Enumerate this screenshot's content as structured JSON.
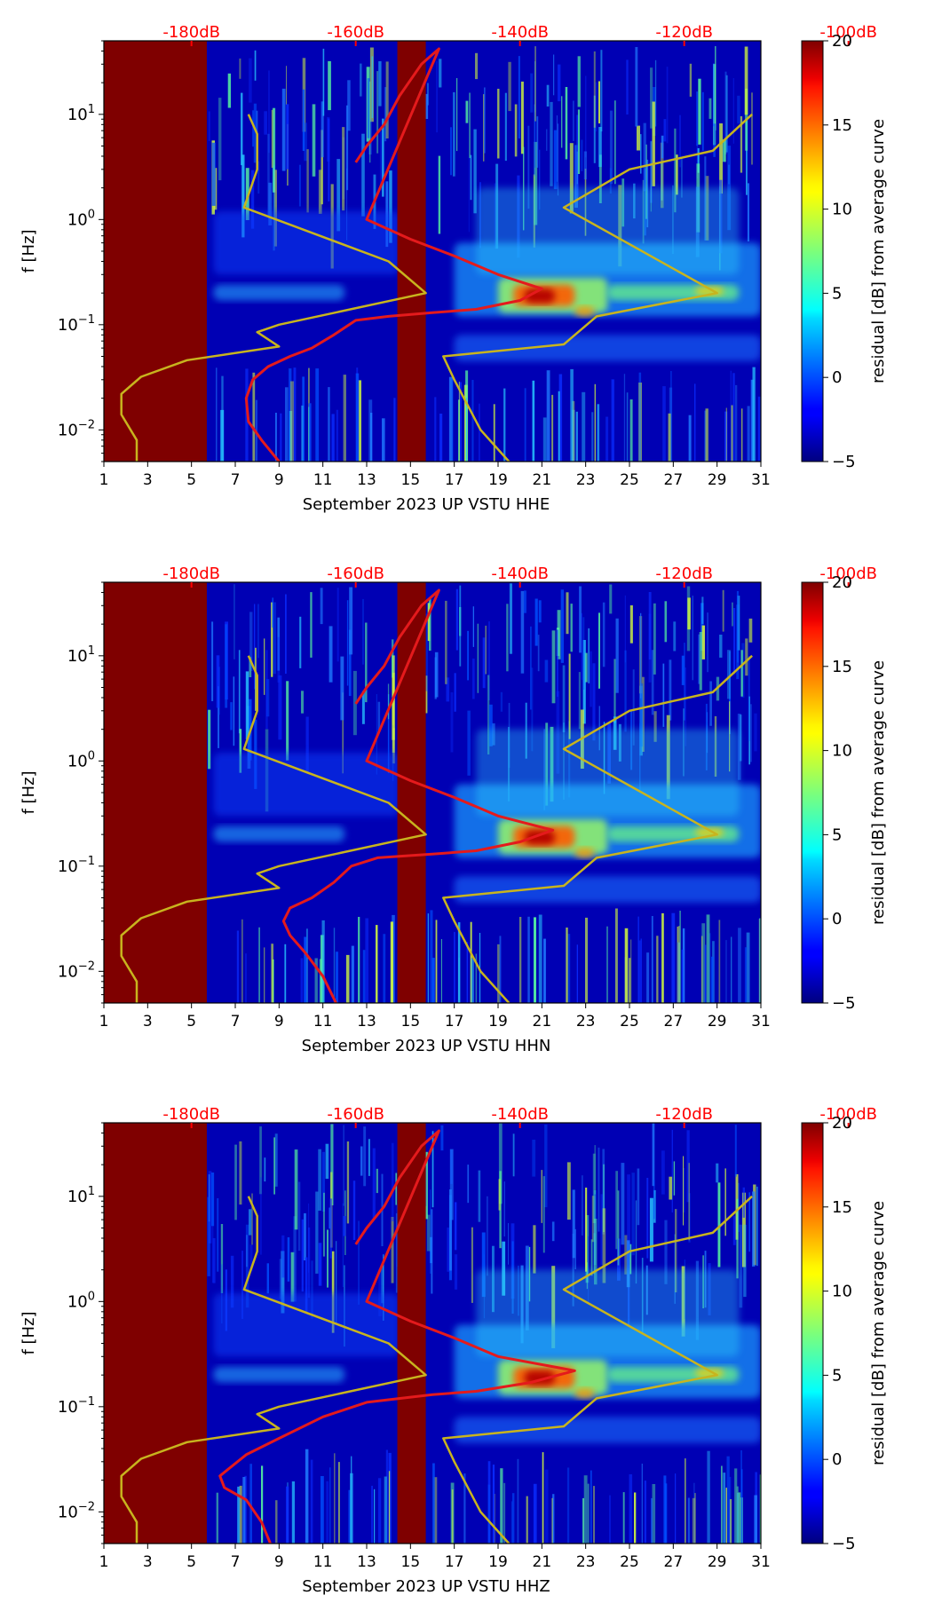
{
  "chart_data": [
    {
      "type": "heatmap",
      "title": "",
      "xlabel": "September 2023 UP VSTU  HHE",
      "ylabel": "f [Hz]",
      "x_ticks": [
        1,
        3,
        5,
        7,
        9,
        11,
        13,
        15,
        17,
        19,
        21,
        23,
        25,
        27,
        29,
        31
      ],
      "xlim": [
        1,
        31
      ],
      "y_scale": "log",
      "ylim": [
        0.005,
        50
      ],
      "y_ticks": [
        {
          "value": 0.01,
          "base": "10",
          "exp": "−2"
        },
        {
          "value": 0.1,
          "base": "10",
          "exp": "−1"
        },
        {
          "value": 1,
          "base": "10",
          "exp": "0"
        },
        {
          "value": 10,
          "base": "10",
          "exp": "1"
        }
      ],
      "top_axis_ticks": [
        "-180dB",
        "-160dB",
        "-140dB",
        "-120dB",
        "-100dB"
      ],
      "top_axis_color": "#ff0000",
      "colorbar": {
        "label": "residual [dB] from average curve",
        "ticks": [
          20,
          15,
          10,
          5,
          0,
          -5
        ],
        "range": [
          -5,
          20
        ],
        "colormap": "jet"
      },
      "no_data_days": [
        [
          1,
          5.7
        ],
        [
          14.4,
          15.7
        ]
      ],
      "series": [
        {
          "color": "#e41a1c",
          "values": [
            [
              12.5,
              3.5
            ],
            [
              13.0,
              5.0
            ],
            [
              13.8,
              8.0
            ],
            [
              14.5,
              15.0
            ],
            [
              15.5,
              30.0
            ],
            [
              16.3,
              42.0
            ],
            [
              13.0,
              1.0
            ],
            [
              15.0,
              0.65
            ],
            [
              17.0,
              0.45
            ],
            [
              19.0,
              0.3
            ],
            [
              21.0,
              0.22
            ],
            [
              20.0,
              0.17
            ],
            [
              18.0,
              0.14
            ],
            [
              16.0,
              0.13
            ],
            [
              14.0,
              0.12
            ],
            [
              12.5,
              0.11
            ],
            [
              11.5,
              0.08
            ],
            [
              10.5,
              0.06
            ],
            [
              9.5,
              0.05
            ],
            [
              8.5,
              0.04
            ],
            [
              7.8,
              0.03
            ],
            [
              7.5,
              0.02
            ],
            [
              7.6,
              0.012
            ],
            [
              8.2,
              0.008
            ],
            [
              9.0,
              0.005
            ]
          ]
        },
        {
          "color": "#c8b41e",
          "values": [
            [
              2.5,
              0.005
            ],
            [
              2.5,
              0.008
            ],
            [
              1.8,
              0.014
            ],
            [
              1.8,
              0.022
            ],
            [
              2.7,
              0.032
            ],
            [
              4.8,
              0.046
            ],
            [
              9.0,
              0.062
            ],
            [
              8.0,
              0.085
            ],
            [
              9.0,
              0.1
            ],
            [
              15.7,
              0.2
            ],
            [
              14.0,
              0.4
            ],
            [
              7.4,
              1.3
            ],
            [
              8.0,
              3.0
            ],
            [
              8.0,
              6.5
            ],
            [
              7.6,
              10.0
            ]
          ]
        },
        {
          "color": "#c8b41e",
          "values": [
            [
              19.5,
              0.005
            ],
            [
              18.2,
              0.01
            ],
            [
              17.0,
              0.03
            ],
            [
              16.5,
              0.05
            ],
            [
              22.0,
              0.065
            ],
            [
              23.5,
              0.12
            ],
            [
              29.0,
              0.2
            ],
            [
              22.0,
              1.3
            ],
            [
              25.0,
              3.0
            ],
            [
              28.8,
              4.5
            ],
            [
              30.6,
              10.0
            ]
          ]
        }
      ]
    },
    {
      "type": "heatmap",
      "title": "",
      "xlabel": "September 2023 UP VSTU  HHN",
      "ylabel": "f [Hz]",
      "x_ticks": [
        1,
        3,
        5,
        7,
        9,
        11,
        13,
        15,
        17,
        19,
        21,
        23,
        25,
        27,
        29,
        31
      ],
      "xlim": [
        1,
        31
      ],
      "y_scale": "log",
      "ylim": [
        0.005,
        50
      ],
      "y_ticks": [
        {
          "value": 0.01,
          "base": "10",
          "exp": "−2"
        },
        {
          "value": 0.1,
          "base": "10",
          "exp": "−1"
        },
        {
          "value": 1,
          "base": "10",
          "exp": "0"
        },
        {
          "value": 10,
          "base": "10",
          "exp": "1"
        }
      ],
      "top_axis_ticks": [
        "-180dB",
        "-160dB",
        "-140dB",
        "-120dB",
        "-100dB"
      ],
      "top_axis_color": "#ff0000",
      "colorbar": {
        "label": "residual [dB] from average curve",
        "ticks": [
          20,
          15,
          10,
          5,
          0,
          -5
        ],
        "range": [
          -5,
          20
        ],
        "colormap": "jet"
      },
      "no_data_days": [
        [
          1,
          5.7
        ],
        [
          14.4,
          15.7
        ]
      ],
      "series": [
        {
          "color": "#e41a1c",
          "values": [
            [
              12.5,
              3.5
            ],
            [
              13.0,
              5.0
            ],
            [
              13.8,
              8.0
            ],
            [
              14.5,
              15.0
            ],
            [
              15.5,
              30.0
            ],
            [
              16.3,
              42.0
            ],
            [
              13.0,
              1.0
            ],
            [
              15.0,
              0.65
            ],
            [
              17.0,
              0.45
            ],
            [
              19.0,
              0.3
            ],
            [
              21.5,
              0.22
            ],
            [
              20.0,
              0.17
            ],
            [
              18.0,
              0.14
            ],
            [
              16.0,
              0.13
            ],
            [
              13.5,
              0.12
            ],
            [
              12.3,
              0.1
            ],
            [
              11.5,
              0.07
            ],
            [
              10.5,
              0.05
            ],
            [
              9.5,
              0.04
            ],
            [
              9.2,
              0.03
            ],
            [
              9.5,
              0.022
            ],
            [
              10.2,
              0.015
            ],
            [
              11.0,
              0.009
            ],
            [
              11.6,
              0.005
            ]
          ]
        },
        {
          "color": "#c8b41e",
          "values": [
            [
              2.5,
              0.005
            ],
            [
              2.5,
              0.008
            ],
            [
              1.8,
              0.014
            ],
            [
              1.8,
              0.022
            ],
            [
              2.7,
              0.032
            ],
            [
              4.8,
              0.046
            ],
            [
              9.0,
              0.062
            ],
            [
              8.0,
              0.085
            ],
            [
              9.0,
              0.1
            ],
            [
              15.7,
              0.2
            ],
            [
              14.0,
              0.4
            ],
            [
              7.4,
              1.3
            ],
            [
              8.0,
              3.0
            ],
            [
              8.0,
              6.5
            ],
            [
              7.6,
              10.0
            ]
          ]
        },
        {
          "color": "#c8b41e",
          "values": [
            [
              19.5,
              0.005
            ],
            [
              18.2,
              0.01
            ],
            [
              17.0,
              0.03
            ],
            [
              16.5,
              0.05
            ],
            [
              22.0,
              0.065
            ],
            [
              23.5,
              0.12
            ],
            [
              29.0,
              0.2
            ],
            [
              22.0,
              1.3
            ],
            [
              25.0,
              3.0
            ],
            [
              28.8,
              4.5
            ],
            [
              30.6,
              10.0
            ]
          ]
        }
      ]
    },
    {
      "type": "heatmap",
      "title": "",
      "xlabel": "September 2023 UP VSTU  HHZ",
      "ylabel": "f [Hz]",
      "x_ticks": [
        1,
        3,
        5,
        7,
        9,
        11,
        13,
        15,
        17,
        19,
        21,
        23,
        25,
        27,
        29,
        31
      ],
      "xlim": [
        1,
        31
      ],
      "y_scale": "log",
      "ylim": [
        0.005,
        50
      ],
      "y_ticks": [
        {
          "value": 0.01,
          "base": "10",
          "exp": "−2"
        },
        {
          "value": 0.1,
          "base": "10",
          "exp": "−1"
        },
        {
          "value": 1,
          "base": "10",
          "exp": "0"
        },
        {
          "value": 10,
          "base": "10",
          "exp": "1"
        }
      ],
      "top_axis_ticks": [
        "-180dB",
        "-160dB",
        "-140dB",
        "-120dB",
        "-100dB"
      ],
      "top_axis_color": "#ff0000",
      "colorbar": {
        "label": "residual [dB] from average curve",
        "ticks": [
          20,
          15,
          10,
          5,
          0,
          -5
        ],
        "range": [
          -5,
          20
        ],
        "colormap": "jet"
      },
      "no_data_days": [
        [
          1,
          5.7
        ],
        [
          14.4,
          15.7
        ]
      ],
      "series": [
        {
          "color": "#e41a1c",
          "values": [
            [
              12.5,
              3.5
            ],
            [
              13.0,
              5.0
            ],
            [
              13.8,
              8.0
            ],
            [
              14.5,
              15.0
            ],
            [
              15.5,
              30.0
            ],
            [
              16.3,
              42.0
            ],
            [
              13.0,
              1.0
            ],
            [
              15.0,
              0.65
            ],
            [
              17.0,
              0.45
            ],
            [
              19.0,
              0.3
            ],
            [
              22.5,
              0.22
            ],
            [
              20.5,
              0.17
            ],
            [
              18.0,
              0.14
            ],
            [
              16.0,
              0.13
            ],
            [
              13.0,
              0.11
            ],
            [
              11.0,
              0.08
            ],
            [
              9.0,
              0.05
            ],
            [
              7.5,
              0.035
            ],
            [
              6.3,
              0.022
            ],
            [
              6.5,
              0.017
            ],
            [
              7.5,
              0.013
            ],
            [
              8.2,
              0.008
            ],
            [
              8.6,
              0.005
            ]
          ]
        },
        {
          "color": "#c8b41e",
          "values": [
            [
              2.5,
              0.005
            ],
            [
              2.5,
              0.008
            ],
            [
              1.8,
              0.014
            ],
            [
              1.8,
              0.022
            ],
            [
              2.7,
              0.032
            ],
            [
              4.8,
              0.046
            ],
            [
              9.0,
              0.062
            ],
            [
              8.0,
              0.085
            ],
            [
              9.0,
              0.1
            ],
            [
              15.7,
              0.2
            ],
            [
              14.0,
              0.4
            ],
            [
              7.4,
              1.3
            ],
            [
              8.0,
              3.0
            ],
            [
              8.0,
              6.5
            ],
            [
              7.6,
              10.0
            ]
          ]
        },
        {
          "color": "#c8b41e",
          "values": [
            [
              19.5,
              0.005
            ],
            [
              18.2,
              0.01
            ],
            [
              17.0,
              0.03
            ],
            [
              16.5,
              0.05
            ],
            [
              22.0,
              0.065
            ],
            [
              23.5,
              0.12
            ],
            [
              29.0,
              0.2
            ],
            [
              22.0,
              1.3
            ],
            [
              25.0,
              3.0
            ],
            [
              28.8,
              4.5
            ],
            [
              30.6,
              10.0
            ]
          ]
        }
      ]
    }
  ]
}
